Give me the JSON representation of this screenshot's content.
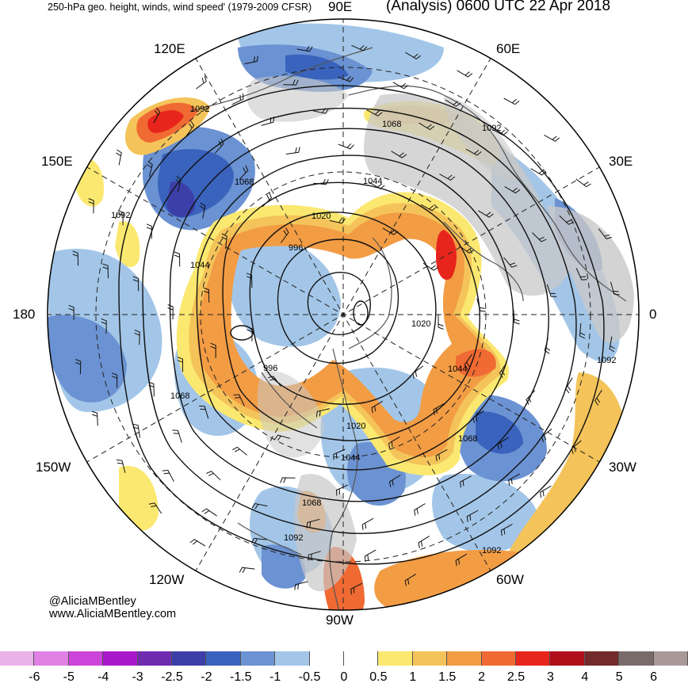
{
  "header": {
    "left_title": "250-hPa geo. height, winds, wind speed' (1979-2009 CFSR)",
    "right_title": "(Analysis) 0600 UTC 22 Apr 2018"
  },
  "longitude_labels": {
    "e90": "90E",
    "e60": "60E",
    "e120": "120E",
    "e150": "150E",
    "e30": "30E",
    "l180": "180",
    "l0": "0",
    "w150": "150W",
    "w30": "30W",
    "w120": "120W",
    "w60": "60W",
    "w90": "90W"
  },
  "height_contour_labels": [
    "1092",
    "1068",
    "1092",
    "1068",
    "1044",
    "1092",
    "1020",
    "1044",
    "996",
    "1020",
    "996",
    "1044",
    "1092",
    "1068",
    "1020",
    "1068",
    "1044",
    "1068",
    "1092",
    "1092"
  ],
  "credit": {
    "handle": "@AliciaMBentley",
    "website": "www.AliciaMBentley.com"
  },
  "colorbar": {
    "labels": [
      "-6",
      "-5",
      "-4",
      "-3",
      "-2.5",
      "-2",
      "-1.5",
      "-1",
      "-0.5",
      "0",
      "0.5",
      "1",
      "1.5",
      "2",
      "2.5",
      "3",
      "4",
      "5",
      "6"
    ],
    "colors": [
      "#e9b3e9",
      "#e080e5",
      "#cc44d9",
      "#aa18cc",
      "#6e2bb0",
      "#3d3fa8",
      "#3a63bd",
      "#6b92d2",
      "#a3c6e8",
      "#ffffff",
      "#ffffff",
      "#fbe870",
      "#f4c45a",
      "#f29c44",
      "#f06a33",
      "#e8251c",
      "#b0101a",
      "#722a2a",
      "#7a6b6b",
      "#a89898"
    ]
  },
  "colors": {
    "negative_dark": "#3d3fa8",
    "negative_mid": "#3a63bd",
    "negative_light": "#6b92d2",
    "negative_pale": "#a3c6e8",
    "positive_pale": "#fbe870",
    "positive_light": "#f4c45a",
    "positive_mid": "#f29c44",
    "positive_strong": "#f06a33",
    "positive_max": "#e8251c",
    "land": "#c8c8c8",
    "coast": "#555555"
  }
}
